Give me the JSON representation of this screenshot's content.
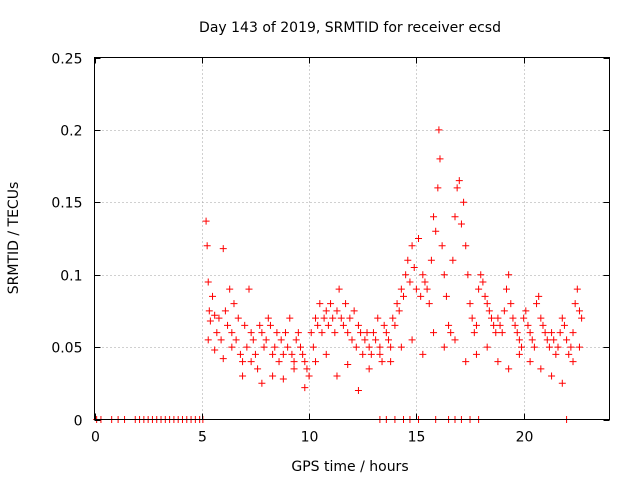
{
  "chart_data": {
    "type": "scatter",
    "title": "Day 143 of 2019, SRMTID for receiver ecsd",
    "xlabel": "GPS time / hours",
    "ylabel": "SRMTID / TECUs",
    "xlim": [
      0,
      24
    ],
    "ylim": [
      0,
      0.25
    ],
    "xticks": [
      0,
      5,
      10,
      15,
      20
    ],
    "xtick_labels": [
      "0",
      "5",
      "10",
      "15",
      "20"
    ],
    "yticks": [
      0,
      0.05,
      0.1,
      0.15,
      0.2,
      0.25
    ],
    "ytick_labels": [
      "0",
      "0.05",
      "0.1",
      "0.15",
      "0.2",
      "0.25"
    ],
    "grid": true,
    "marker": "plus",
    "color": "#ff0000",
    "series": [
      {
        "name": "SRMTID",
        "x": [
          0.1,
          0.3,
          0.8,
          1.1,
          1.4,
          1.9,
          2.1,
          2.3,
          2.5,
          2.7,
          2.9,
          3.1,
          3.3,
          3.5,
          3.7,
          3.9,
          4.1,
          4.3,
          4.5,
          4.7,
          4.9,
          5.05,
          5.2,
          5.25,
          5.3,
          5.35,
          5.4,
          5.5,
          5.6,
          5.7,
          5.8,
          5.9,
          6.0,
          6.1,
          6.2,
          6.3,
          6.4,
          6.5,
          6.6,
          6.7,
          6.8,
          6.9,
          7.0,
          7.1,
          7.2,
          7.3,
          7.4,
          7.5,
          7.6,
          7.7,
          7.8,
          7.9,
          8.0,
          8.1,
          8.2,
          8.3,
          8.4,
          8.5,
          8.6,
          8.7,
          8.8,
          8.9,
          9.0,
          9.1,
          9.2,
          9.3,
          9.4,
          9.5,
          9.6,
          9.7,
          9.8,
          9.9,
          10.0,
          10.1,
          10.2,
          10.3,
          10.4,
          10.5,
          10.6,
          10.7,
          10.8,
          10.9,
          11.0,
          11.1,
          11.2,
          11.3,
          11.4,
          11.5,
          11.6,
          11.7,
          11.8,
          11.9,
          12.0,
          12.1,
          12.2,
          12.3,
          12.4,
          12.5,
          12.6,
          12.7,
          12.8,
          12.9,
          13.0,
          13.1,
          13.2,
          13.3,
          13.4,
          13.5,
          13.6,
          13.7,
          13.8,
          13.9,
          14.0,
          14.1,
          14.2,
          14.3,
          14.4,
          14.5,
          14.6,
          14.7,
          14.8,
          14.9,
          15.0,
          15.1,
          15.2,
          15.3,
          15.4,
          15.5,
          15.6,
          15.7,
          15.8,
          15.9,
          16.0,
          16.05,
          16.1,
          16.2,
          16.3,
          16.4,
          16.5,
          16.6,
          16.7,
          16.8,
          16.9,
          17.0,
          17.1,
          17.2,
          17.3,
          17.4,
          17.5,
          17.6,
          17.7,
          17.8,
          17.9,
          18.0,
          18.1,
          18.2,
          18.3,
          18.4,
          18.5,
          18.6,
          18.7,
          18.8,
          18.9,
          19.0,
          19.1,
          19.2,
          19.3,
          19.4,
          19.5,
          19.6,
          19.7,
          19.8,
          19.9,
          20.0,
          20.1,
          20.2,
          20.3,
          20.4,
          20.5,
          20.6,
          20.7,
          20.8,
          20.9,
          21.0,
          21.1,
          21.2,
          21.3,
          21.4,
          21.5,
          21.6,
          21.7,
          21.8,
          21.9,
          22.0,
          22.1,
          22.2,
          22.3,
          22.4,
          22.5,
          22.6,
          22.7,
          5.3,
          5.6,
          6.0,
          6.4,
          6.9,
          7.3,
          7.8,
          8.3,
          8.8,
          9.3,
          9.8,
          10.3,
          10.8,
          11.3,
          11.8,
          12.3,
          12.8,
          13.3,
          13.8,
          14.3,
          14.8,
          15.3,
          15.8,
          16.3,
          16.8,
          17.3,
          17.8,
          18.3,
          18.8,
          19.3,
          19.8,
          20.3,
          20.8,
          21.3,
          21.8,
          22.3,
          22.6,
          13.3,
          13.6,
          14.0,
          14.4,
          14.7,
          15.1,
          15.9,
          16.5,
          16.8,
          17.1,
          17.5,
          17.9,
          22.0
        ],
        "y": [
          0,
          0,
          0,
          0,
          0,
          0,
          0,
          0,
          0,
          0,
          0,
          0,
          0,
          0,
          0,
          0,
          0,
          0,
          0,
          0,
          0,
          0,
          0.137,
          0.12,
          0.095,
          0.075,
          0.068,
          0.085,
          0.072,
          0.06,
          0.07,
          0.055,
          0.118,
          0.075,
          0.065,
          0.09,
          0.06,
          0.08,
          0.055,
          0.07,
          0.045,
          0.04,
          0.065,
          0.05,
          0.09,
          0.06,
          0.055,
          0.045,
          0.035,
          0.065,
          0.06,
          0.05,
          0.055,
          0.07,
          0.065,
          0.045,
          0.05,
          0.06,
          0.04,
          0.055,
          0.045,
          0.06,
          0.05,
          0.07,
          0.045,
          0.04,
          0.055,
          0.06,
          0.05,
          0.045,
          0.04,
          0.035,
          0.03,
          0.06,
          0.05,
          0.07,
          0.065,
          0.08,
          0.06,
          0.07,
          0.075,
          0.065,
          0.08,
          0.07,
          0.06,
          0.075,
          0.09,
          0.07,
          0.065,
          0.08,
          0.06,
          0.07,
          0.055,
          0.075,
          0.05,
          0.065,
          0.06,
          0.045,
          0.055,
          0.06,
          0.05,
          0.045,
          0.06,
          0.055,
          0.07,
          0.05,
          0.04,
          0.065,
          0.06,
          0.055,
          0.05,
          0.07,
          0.065,
          0.08,
          0.075,
          0.09,
          0.085,
          0.1,
          0.11,
          0.095,
          0.12,
          0.105,
          0.09,
          0.125,
          0.085,
          0.1,
          0.095,
          0.09,
          0.08,
          0.11,
          0.14,
          0.13,
          0.16,
          0.2,
          0.18,
          0.12,
          0.1,
          0.085,
          0.065,
          0.06,
          0.11,
          0.14,
          0.16,
          0.165,
          0.135,
          0.15,
          0.12,
          0.1,
          0.08,
          0.07,
          0.06,
          0.065,
          0.09,
          0.1,
          0.095,
          0.085,
          0.08,
          0.075,
          0.07,
          0.065,
          0.06,
          0.07,
          0.065,
          0.06,
          0.075,
          0.09,
          0.1,
          0.08,
          0.07,
          0.065,
          0.06,
          0.055,
          0.05,
          0.07,
          0.075,
          0.065,
          0.06,
          0.055,
          0.05,
          0.08,
          0.085,
          0.07,
          0.065,
          0.06,
          0.055,
          0.05,
          0.06,
          0.055,
          0.045,
          0.05,
          0.06,
          0.07,
          0.065,
          0.055,
          0.045,
          0.05,
          0.06,
          0.08,
          0.09,
          0.075,
          0.07,
          0.055,
          0.048,
          0.042,
          0.05,
          0.03,
          0.04,
          0.025,
          0.03,
          0.028,
          0.035,
          0.022,
          0.04,
          0.045,
          0.03,
          0.038,
          0.02,
          0.035,
          0.045,
          0.04,
          0.05,
          0.055,
          0.045,
          0.06,
          0.05,
          0.055,
          0.04,
          0.045,
          0.05,
          0.04,
          0.035,
          0.045,
          0.04,
          0.035,
          0.03,
          0.025,
          0.04,
          0.05,
          0,
          0,
          0,
          0,
          0,
          0,
          0,
          0,
          0,
          0,
          0,
          0,
          0
        ]
      }
    ]
  }
}
